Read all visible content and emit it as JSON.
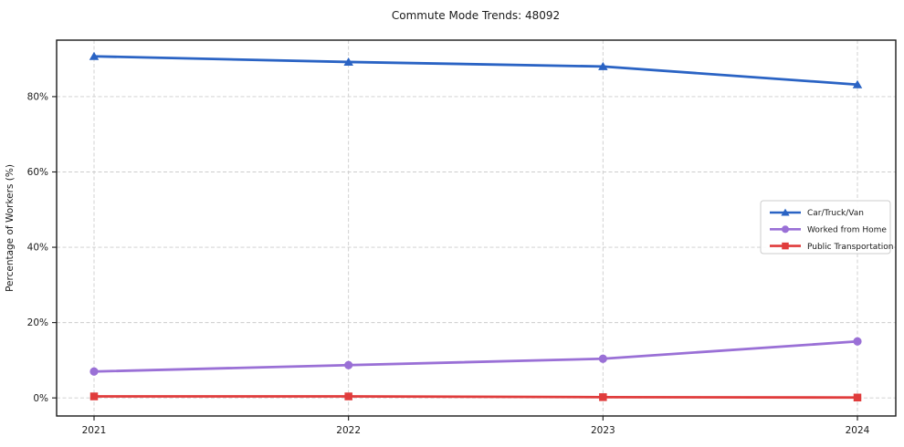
{
  "chart_data": {
    "type": "line",
    "title": "Commute Mode Trends: 48092",
    "xlabel": "",
    "ylabel": "Percentage of Workers (%)",
    "categories": [
      "2021",
      "2022",
      "2023",
      "2024"
    ],
    "series": [
      {
        "name": "Car/Truck/Van",
        "color": "#2a63c4",
        "marker": "triangle",
        "values": [
          90.7,
          89.2,
          88.0,
          83.2
        ]
      },
      {
        "name": "Worked from Home",
        "color": "#9a70d6",
        "marker": "circle",
        "values": [
          7.0,
          8.7,
          10.4,
          15.0
        ]
      },
      {
        "name": "Public Transportation",
        "color": "#e03c3c",
        "marker": "square",
        "values": [
          0.4,
          0.4,
          0.2,
          0.1
        ]
      }
    ],
    "yticks": [
      {
        "value": 0,
        "label": "0%"
      },
      {
        "value": 20,
        "label": "20%"
      },
      {
        "value": 40,
        "label": "40%"
      },
      {
        "value": 60,
        "label": "60%"
      },
      {
        "value": 80,
        "label": "80%"
      }
    ],
    "ylim": [
      -4.8,
      95.0
    ],
    "grid": "dashed",
    "grid_color": "#cccccc",
    "frame_color": "#1a1a1a",
    "legend_position": "center-right"
  }
}
